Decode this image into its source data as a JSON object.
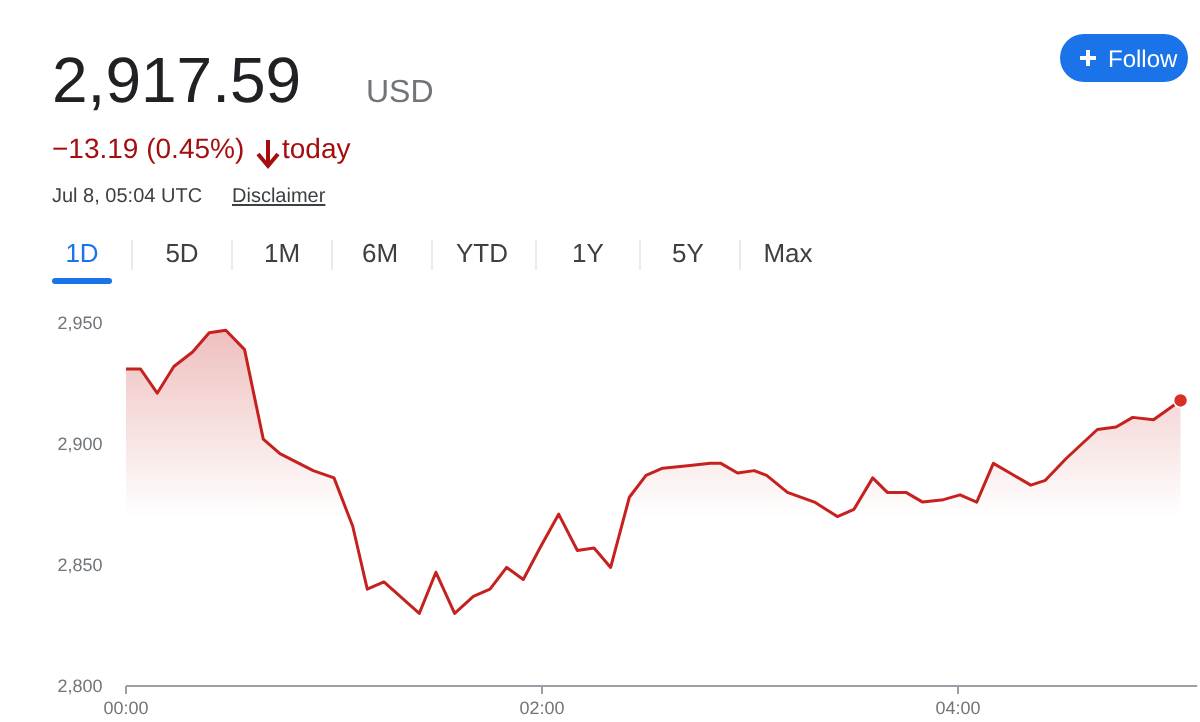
{
  "chart_data": {
    "type": "area",
    "title": "2,917.59",
    "annotations": [
      "USD",
      "−13.19 (0.45%)",
      "today",
      "Jul 8, 05:04 UTC",
      "Disclaimer",
      "1D",
      "5D",
      "1M",
      "6M",
      "YTD",
      "1Y",
      "5Y",
      "Max",
      "Follow"
    ],
    "x": [
      0,
      0.07,
      0.15,
      0.23,
      0.32,
      0.4,
      0.48,
      0.57,
      0.66,
      0.74,
      0.9,
      1.0,
      1.09,
      1.16,
      1.24,
      1.41,
      1.49,
      1.58,
      1.67,
      1.75,
      1.83,
      1.91,
      1.99,
      2.08,
      2.17,
      2.25,
      2.28,
      2.33,
      2.42,
      2.5,
      2.58,
      2.7,
      2.81,
      2.86,
      2.94,
      3.02,
      3.08,
      3.18,
      3.31,
      3.42,
      3.5,
      3.59,
      3.66,
      3.75,
      3.83,
      3.93,
      4.01,
      4.09,
      4.17,
      4.25,
      4.35,
      4.42,
      4.52,
      4.67,
      4.76,
      4.84,
      4.94,
      5.07
    ],
    "series": [
      {
        "color": "#c5221f",
        "values": [
          2931,
          2931,
          2921,
          2932,
          2938,
          2946,
          2947,
          2939,
          2902,
          2896,
          2889,
          2886,
          2866,
          2840,
          2843,
          2830,
          2847,
          2830,
          2837,
          2840,
          2849,
          2844,
          2857,
          2871,
          2856,
          2857,
          2854,
          2849,
          2878,
          2887,
          2890,
          2891,
          2892,
          2892,
          2888,
          2889,
          2887,
          2880,
          2876,
          2870,
          2873,
          2886,
          2880,
          2880,
          2876,
          2877,
          2879,
          2876,
          2892,
          2888,
          2883,
          2885,
          2894,
          2906,
          2907,
          2911,
          2910,
          2918
        ]
      },
      {
        "type": "scatter",
        "color": "#d93025",
        "x": [
          5.07
        ],
        "values": [
          2918
        ],
        "marker": "circle"
      }
    ],
    "xlim": [
      0,
      5.15
    ],
    "ylim": [
      2800,
      2950
    ],
    "xticks": [
      {
        "value": 0,
        "label": "00:00"
      },
      {
        "value": 2,
        "label": "02:00"
      },
      {
        "value": 4,
        "label": "04:00"
      }
    ],
    "yticks": [
      {
        "value": 2800,
        "label": "2,800"
      },
      {
        "value": 2850,
        "label": "2,850"
      },
      {
        "value": 2900,
        "label": "2,900"
      },
      {
        "value": 2950,
        "label": "2,950"
      }
    ],
    "grid": false,
    "marker": "none"
  }
}
